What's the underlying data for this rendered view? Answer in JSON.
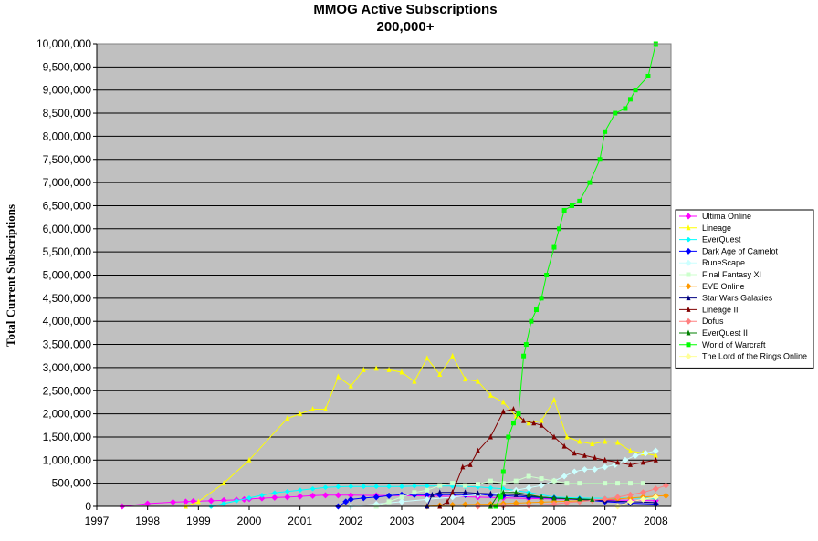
{
  "chart_data": {
    "type": "line",
    "title": "MMOG Active Subscriptions",
    "subtitle": "200,000+",
    "ylabel": "Total Current Subscriptions",
    "xlabel": "",
    "xlim": [
      1997,
      2008.3
    ],
    "ylim": [
      0,
      10000000
    ],
    "x_ticks": [
      "1997",
      "1998",
      "1999",
      "2000",
      "2001",
      "2002",
      "2003",
      "2004",
      "2005",
      "2006",
      "2007",
      "2008"
    ],
    "y_ticks": [
      "0",
      "500,000",
      "1,000,000",
      "1,500,000",
      "2,000,000",
      "2,500,000",
      "3,000,000",
      "3,500,000",
      "4,000,000",
      "4,500,000",
      "5,000,000",
      "5,500,000",
      "6,000,000",
      "6,500,000",
      "7,000,000",
      "7,500,000",
      "8,000,000",
      "8,500,000",
      "9,000,000",
      "9,500,000",
      "10,000,000"
    ],
    "grid": true,
    "legend": "right",
    "plot_background": "#c0c0c0",
    "series": [
      {
        "name": "Ultima Online",
        "color": "#ff00ff",
        "marker": "diamond",
        "x": [
          1997.5,
          1998.0,
          1998.5,
          1998.75,
          1998.9,
          1999.25,
          1999.5,
          1999.75,
          1999.9,
          2000.0,
          2000.25,
          2000.5,
          2000.75,
          2001.0,
          2001.25,
          2001.5,
          2001.75,
          2002.0,
          2002.5,
          2003.0,
          2003.5,
          2004.0,
          2004.5,
          2005.0,
          2005.5,
          2006.0,
          2006.5,
          2007.0,
          2007.5,
          2008.0
        ],
        "y": [
          0,
          60000,
          90000,
          100000,
          110000,
          120000,
          130000,
          140000,
          150000,
          160000,
          175000,
          190000,
          200000,
          215000,
          230000,
          240000,
          240000,
          240000,
          235000,
          230000,
          225000,
          215000,
          200000,
          185000,
          170000,
          160000,
          150000,
          140000,
          130000,
          125000
        ]
      },
      {
        "name": "Lineage",
        "color": "#ffff00",
        "marker": "triangle",
        "x": [
          1998.75,
          1999.0,
          1999.5,
          2000.0,
          2000.75,
          2001.0,
          2001.25,
          2001.5,
          2001.75,
          2002.0,
          2002.25,
          2002.5,
          2002.75,
          2003.0,
          2003.25,
          2003.5,
          2003.75,
          2004.0,
          2004.25,
          2004.5,
          2004.75,
          2005.0,
          2005.25,
          2005.5,
          2005.75,
          2006.0,
          2006.25,
          2006.5,
          2006.75,
          2007.0,
          2007.25,
          2007.5,
          2007.75,
          2008.0
        ],
        "y": [
          0,
          100000,
          500000,
          1000000,
          1900000,
          2000000,
          2100000,
          2100000,
          2800000,
          2600000,
          2950000,
          2980000,
          2950000,
          2900000,
          2700000,
          3200000,
          2850000,
          3250000,
          2750000,
          2700000,
          2400000,
          2250000,
          1950000,
          1800000,
          1850000,
          2300000,
          1500000,
          1400000,
          1350000,
          1400000,
          1380000,
          1200000,
          1150000,
          1100000
        ]
      },
      {
        "name": "EverQuest",
        "color": "#00ffff",
        "marker": "star",
        "x": [
          1999.25,
          1999.5,
          1999.75,
          2000.0,
          2000.25,
          2000.5,
          2000.75,
          2001.0,
          2001.25,
          2001.5,
          2001.75,
          2002.0,
          2002.25,
          2002.5,
          2002.75,
          2003.0,
          2003.25,
          2003.5,
          2003.75,
          2004.0,
          2004.25,
          2004.5,
          2004.75,
          2005.0,
          2005.5,
          2006.0,
          2006.5,
          2007.0,
          2007.5,
          2008.0
        ],
        "y": [
          0,
          60000,
          120000,
          180000,
          240000,
          290000,
          320000,
          350000,
          380000,
          410000,
          425000,
          430000,
          430000,
          430000,
          430000,
          430000,
          440000,
          440000,
          440000,
          440000,
          430000,
          420000,
          400000,
          380000,
          300000,
          200000,
          180000,
          175000,
          180000,
          175000
        ]
      },
      {
        "name": "Dark Age of Camelot",
        "color": "#0000ff",
        "marker": "diamond",
        "x": [
          2001.75,
          2001.9,
          2002.0,
          2002.25,
          2002.5,
          2002.75,
          2003.0,
          2003.25,
          2003.5,
          2003.75,
          2004.0,
          2004.25,
          2004.5,
          2004.75,
          2005.0,
          2005.5,
          2006.0,
          2006.5,
          2007.0,
          2007.5,
          2008.0
        ],
        "y": [
          0,
          100000,
          150000,
          180000,
          200000,
          230000,
          250000,
          250000,
          250000,
          250000,
          250000,
          250000,
          250000,
          240000,
          230000,
          200000,
          175000,
          150000,
          100000,
          70000,
          50000
        ]
      },
      {
        "name": "RuneScape",
        "color": "#ccffff",
        "marker": "diamond",
        "x": [
          2002.0,
          2002.5,
          2003.0,
          2003.5,
          2004.0,
          2004.5,
          2005.0,
          2005.25,
          2005.5,
          2005.75,
          2006.0,
          2006.2,
          2006.4,
          2006.6,
          2006.8,
          2007.0,
          2007.2,
          2007.4,
          2007.6,
          2007.8,
          2008.0
        ],
        "y": [
          0,
          50000,
          100000,
          150000,
          200000,
          250000,
          300000,
          350000,
          400000,
          450000,
          550000,
          650000,
          750000,
          800000,
          800000,
          850000,
          900000,
          1000000,
          1100000,
          1150000,
          1200000
        ]
      },
      {
        "name": "Final Fantasy XI",
        "color": "#ccffcc",
        "marker": "square",
        "x": [
          2002.5,
          2002.75,
          2003.0,
          2003.25,
          2003.5,
          2003.75,
          2004.0,
          2004.25,
          2004.5,
          2004.75,
          2005.0,
          2005.25,
          2005.5,
          2005.75,
          2006.0,
          2006.25,
          2006.5,
          2007.0,
          2007.25,
          2007.5,
          2007.75
        ],
        "y": [
          0,
          100000,
          200000,
          300000,
          350000,
          450000,
          500000,
          450000,
          480000,
          550000,
          500000,
          550000,
          650000,
          600000,
          550000,
          500000,
          500000,
          500000,
          500000,
          500000,
          500000
        ]
      },
      {
        "name": "EVE Online",
        "color": "#ff9900",
        "marker": "diamond",
        "x": [
          2003.5,
          2003.75,
          2004.0,
          2004.25,
          2004.5,
          2004.75,
          2005.0,
          2005.25,
          2005.5,
          2005.75,
          2006.0,
          2006.25,
          2006.5,
          2006.75,
          2007.0,
          2007.25,
          2007.5,
          2007.75,
          2008.0,
          2008.2
        ],
        "y": [
          0,
          20000,
          30000,
          40000,
          45000,
          50000,
          60000,
          70000,
          80000,
          90000,
          100000,
          110000,
          120000,
          130000,
          150000,
          160000,
          180000,
          200000,
          220000,
          230000
        ]
      },
      {
        "name": "Star Wars Galaxies",
        "color": "#000080",
        "marker": "triangle",
        "x": [
          2003.5,
          2003.6,
          2003.75,
          2004.0,
          2004.25,
          2004.5,
          2004.75,
          2005.0,
          2005.25,
          2005.5,
          2005.75,
          2006.0,
          2006.5,
          2007.0,
          2007.5,
          2008.0
        ],
        "y": [
          0,
          250000,
          300000,
          300000,
          300000,
          280000,
          270000,
          260000,
          250000,
          220000,
          200000,
          180000,
          150000,
          120000,
          100000,
          80000
        ]
      },
      {
        "name": "Lineage II",
        "color": "#800000",
        "marker": "triangle",
        "x": [
          2003.75,
          2003.9,
          2004.0,
          2004.2,
          2004.35,
          2004.5,
          2004.75,
          2005.0,
          2005.2,
          2005.4,
          2005.6,
          2005.75,
          2006.0,
          2006.2,
          2006.4,
          2006.6,
          2006.8,
          2007.0,
          2007.25,
          2007.5,
          2007.75,
          2008.0
        ],
        "y": [
          0,
          100000,
          300000,
          850000,
          900000,
          1200000,
          1500000,
          2050000,
          2100000,
          1850000,
          1800000,
          1750000,
          1500000,
          1300000,
          1150000,
          1100000,
          1050000,
          1000000,
          950000,
          900000,
          950000,
          1000000
        ]
      },
      {
        "name": "Dofus",
        "color": "#ff8080",
        "marker": "diamond",
        "x": [
          2004.5,
          2005.0,
          2005.5,
          2006.0,
          2006.25,
          2006.5,
          2006.75,
          2007.0,
          2007.25,
          2007.5,
          2007.75,
          2008.0,
          2008.2
        ],
        "y": [
          0,
          10000,
          20000,
          50000,
          80000,
          100000,
          130000,
          160000,
          200000,
          250000,
          300000,
          380000,
          450000
        ]
      },
      {
        "name": "EverQuest II",
        "color": "#008000",
        "marker": "triangle",
        "x": [
          2004.75,
          2004.9,
          2005.0,
          2005.25,
          2005.5,
          2005.75,
          2006.0,
          2006.25,
          2006.5,
          2006.75
        ],
        "y": [
          0,
          250000,
          300000,
          300000,
          250000,
          200000,
          180000,
          170000,
          160000,
          150000
        ]
      },
      {
        "name": "World of Warcraft",
        "color": "#00ff00",
        "marker": "square",
        "x": [
          2004.85,
          2004.95,
          2005.0,
          2005.1,
          2005.2,
          2005.3,
          2005.4,
          2005.45,
          2005.55,
          2005.65,
          2005.75,
          2005.85,
          2006.0,
          2006.1,
          2006.2,
          2006.35,
          2006.5,
          2006.7,
          2006.9,
          2007.0,
          2007.2,
          2007.4,
          2007.5,
          2007.6,
          2007.85,
          2008.0
        ],
        "y": [
          0,
          200000,
          750000,
          1500000,
          1800000,
          2000000,
          3250000,
          3500000,
          4000000,
          4250000,
          4500000,
          5000000,
          5600000,
          6000000,
          6400000,
          6500000,
          6600000,
          7000000,
          7500000,
          8100000,
          8500000,
          8600000,
          8800000,
          9000000,
          9300000,
          10000000
        ]
      },
      {
        "name": "The Lord of the Rings Online",
        "color": "#ffff99",
        "marker": "diamond",
        "x": [
          2007.25,
          2007.5,
          2007.75,
          2008.0
        ],
        "y": [
          0,
          100000,
          150000,
          200000
        ]
      }
    ]
  }
}
